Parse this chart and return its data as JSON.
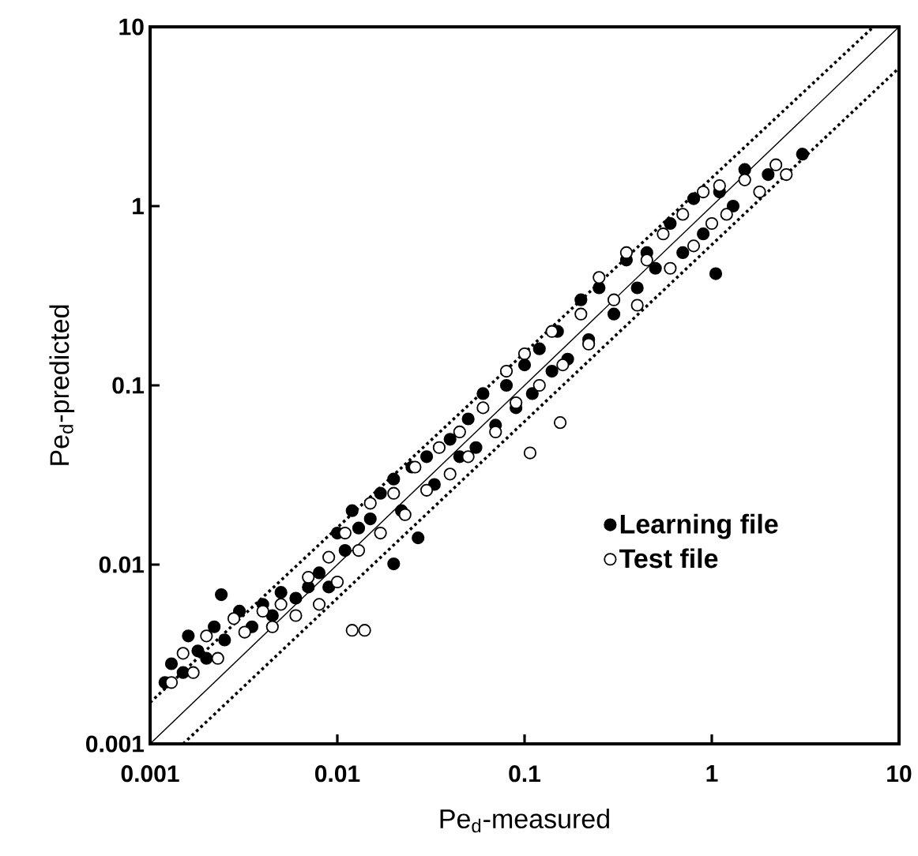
{
  "chart_data": {
    "type": "scatter",
    "xlabel": "Pe$_{d}$-measured",
    "ylabel": "Pe$_{d}$-predicted",
    "log": "xy",
    "xlim": [
      0.001,
      10
    ],
    "ylim": [
      0.001,
      10
    ],
    "xticks": [
      {
        "value": 0.001,
        "label": "0.001"
      },
      {
        "value": 0.01,
        "label": "0.01"
      },
      {
        "value": 0.1,
        "label": "0.1"
      },
      {
        "value": 1,
        "label": "1"
      },
      {
        "value": 10,
        "label": "10"
      }
    ],
    "yticks": [
      {
        "value": 0.001,
        "label": "0.001"
      },
      {
        "value": 0.01,
        "label": "0.01"
      },
      {
        "value": 0.1,
        "label": "0.1"
      },
      {
        "value": 1,
        "label": "1"
      },
      {
        "value": 10,
        "label": "10"
      }
    ],
    "grid": false,
    "legend": "bottom right",
    "series": [
      {
        "type": "line",
        "color": "#000000",
        "line_style": "solid",
        "marker": "none",
        "x": [
          0.001,
          10
        ],
        "values": [
          0.001,
          10
        ]
      },
      {
        "type": "line",
        "color": "#000000",
        "line_style": "dotted",
        "marker": "none",
        "x": [
          0.001,
          7.3
        ],
        "values": [
          0.0017,
          10
        ]
      },
      {
        "type": "line",
        "color": "#000000",
        "line_style": "dotted",
        "marker": "none",
        "x": [
          0.0015,
          10
        ],
        "values": [
          0.001,
          5.9
        ]
      },
      {
        "name": "Learning file",
        "color": "#000000",
        "marker": "circle",
        "x": [
          0.0012,
          0.0013,
          0.0015,
          0.0016,
          0.0018,
          0.002,
          0.0022,
          0.0024,
          0.0025,
          0.003,
          0.0035,
          0.004,
          0.0045,
          0.005,
          0.006,
          0.007,
          0.008,
          0.009,
          0.01,
          0.011,
          0.012,
          0.013,
          0.015,
          0.017,
          0.02,
          0.02,
          0.022,
          0.025,
          0.027,
          0.03,
          0.033,
          0.04,
          0.045,
          0.05,
          0.055,
          0.06,
          0.07,
          0.08,
          0.09,
          0.1,
          0.11,
          0.12,
          0.14,
          0.15,
          0.17,
          0.2,
          0.22,
          0.25,
          0.3,
          0.35,
          0.4,
          0.45,
          0.5,
          0.6,
          0.7,
          0.8,
          0.9,
          1.05,
          1.1,
          1.3,
          1.5,
          2.0,
          3.05
        ],
        "values": [
          0.0022,
          0.0028,
          0.0025,
          0.004,
          0.0033,
          0.003,
          0.0045,
          0.0068,
          0.0038,
          0.0055,
          0.0045,
          0.006,
          0.0052,
          0.007,
          0.0065,
          0.0075,
          0.009,
          0.0075,
          0.015,
          0.012,
          0.02,
          0.016,
          0.018,
          0.025,
          0.0101,
          0.03,
          0.02,
          0.035,
          0.0141,
          0.04,
          0.028,
          0.05,
          0.04,
          0.065,
          0.045,
          0.09,
          0.06,
          0.1,
          0.075,
          0.13,
          0.09,
          0.16,
          0.12,
          0.2,
          0.14,
          0.3,
          0.18,
          0.35,
          0.25,
          0.5,
          0.35,
          0.55,
          0.45,
          0.8,
          0.55,
          1.1,
          0.7,
          0.42,
          1.2,
          1.0,
          1.6,
          1.5,
          1.95
        ]
      },
      {
        "name": "Test file",
        "color": "#ffffff",
        "marker": "circle",
        "x": [
          0.0013,
          0.0015,
          0.0017,
          0.002,
          0.0023,
          0.0028,
          0.0032,
          0.004,
          0.0045,
          0.005,
          0.006,
          0.007,
          0.008,
          0.009,
          0.01,
          0.011,
          0.012,
          0.014,
          0.013,
          0.015,
          0.017,
          0.02,
          0.023,
          0.026,
          0.03,
          0.035,
          0.04,
          0.045,
          0.05,
          0.06,
          0.07,
          0.08,
          0.09,
          0.107,
          0.1,
          0.12,
          0.155,
          0.14,
          0.16,
          0.2,
          0.22,
          0.25,
          0.3,
          0.35,
          0.4,
          0.45,
          0.55,
          0.6,
          0.7,
          0.8,
          0.9,
          1.0,
          1.1,
          1.2,
          1.5,
          1.8,
          2.2,
          2.5
        ],
        "values": [
          0.0022,
          0.0032,
          0.0025,
          0.004,
          0.003,
          0.005,
          0.0042,
          0.0055,
          0.0045,
          0.006,
          0.0052,
          0.0085,
          0.006,
          0.011,
          0.008,
          0.015,
          0.0043,
          0.0043,
          0.012,
          0.022,
          0.015,
          0.025,
          0.019,
          0.035,
          0.026,
          0.045,
          0.032,
          0.055,
          0.04,
          0.075,
          0.055,
          0.12,
          0.08,
          0.042,
          0.15,
          0.1,
          0.062,
          0.2,
          0.13,
          0.25,
          0.17,
          0.4,
          0.3,
          0.55,
          0.28,
          0.5,
          0.7,
          0.45,
          0.9,
          0.6,
          1.2,
          0.8,
          1.3,
          0.9,
          1.4,
          1.2,
          1.7,
          1.5
        ]
      }
    ]
  }
}
